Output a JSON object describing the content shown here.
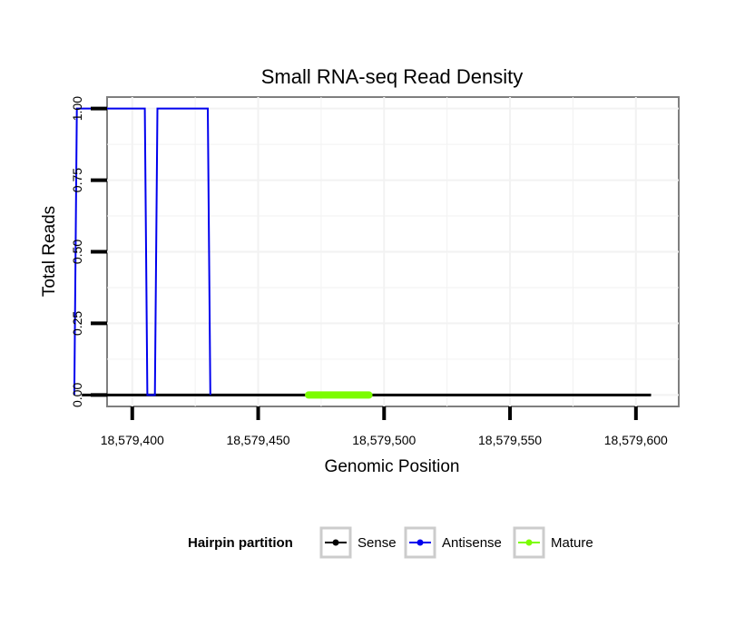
{
  "chart_data": {
    "type": "line",
    "title": "Small RNA-seq Read Density",
    "xlabel": "Genomic Position",
    "ylabel": "Total Reads",
    "xlim": [
      18579390,
      18579617
    ],
    "ylim": [
      -0.04,
      1.04
    ],
    "x_ticks": [
      18579400,
      18579450,
      18579500,
      18579550,
      18579600
    ],
    "x_tick_labels": [
      "18,579,400",
      "18,579,450",
      "18,579,500",
      "18,579,550",
      "18,579,600"
    ],
    "y_ticks": [
      0,
      0.25,
      0.5,
      0.75,
      1
    ],
    "y_tick_labels": [
      "0.00",
      "0.25",
      "0.50",
      "0.75",
      "1.00"
    ],
    "grid": true,
    "legend": {
      "title": "Hairpin partition",
      "position": "bottom",
      "entries": [
        "Sense",
        "Antisense",
        "Mature"
      ]
    },
    "series": [
      {
        "name": "Sense",
        "color": "#000000",
        "x": [
          18579380,
          18579606
        ],
        "y": [
          0,
          0
        ]
      },
      {
        "name": "Antisense",
        "color": "#0000ee",
        "x": [
          18579377,
          18579378,
          18579405,
          18579406,
          18579409,
          18579410,
          18579430,
          18579431
        ],
        "y": [
          0,
          1,
          1,
          0,
          0,
          1,
          1,
          0
        ]
      },
      {
        "name": "Mature",
        "color": "#7cfc00",
        "x": [
          18579470,
          18579494
        ],
        "y": [
          0,
          0
        ]
      }
    ]
  }
}
